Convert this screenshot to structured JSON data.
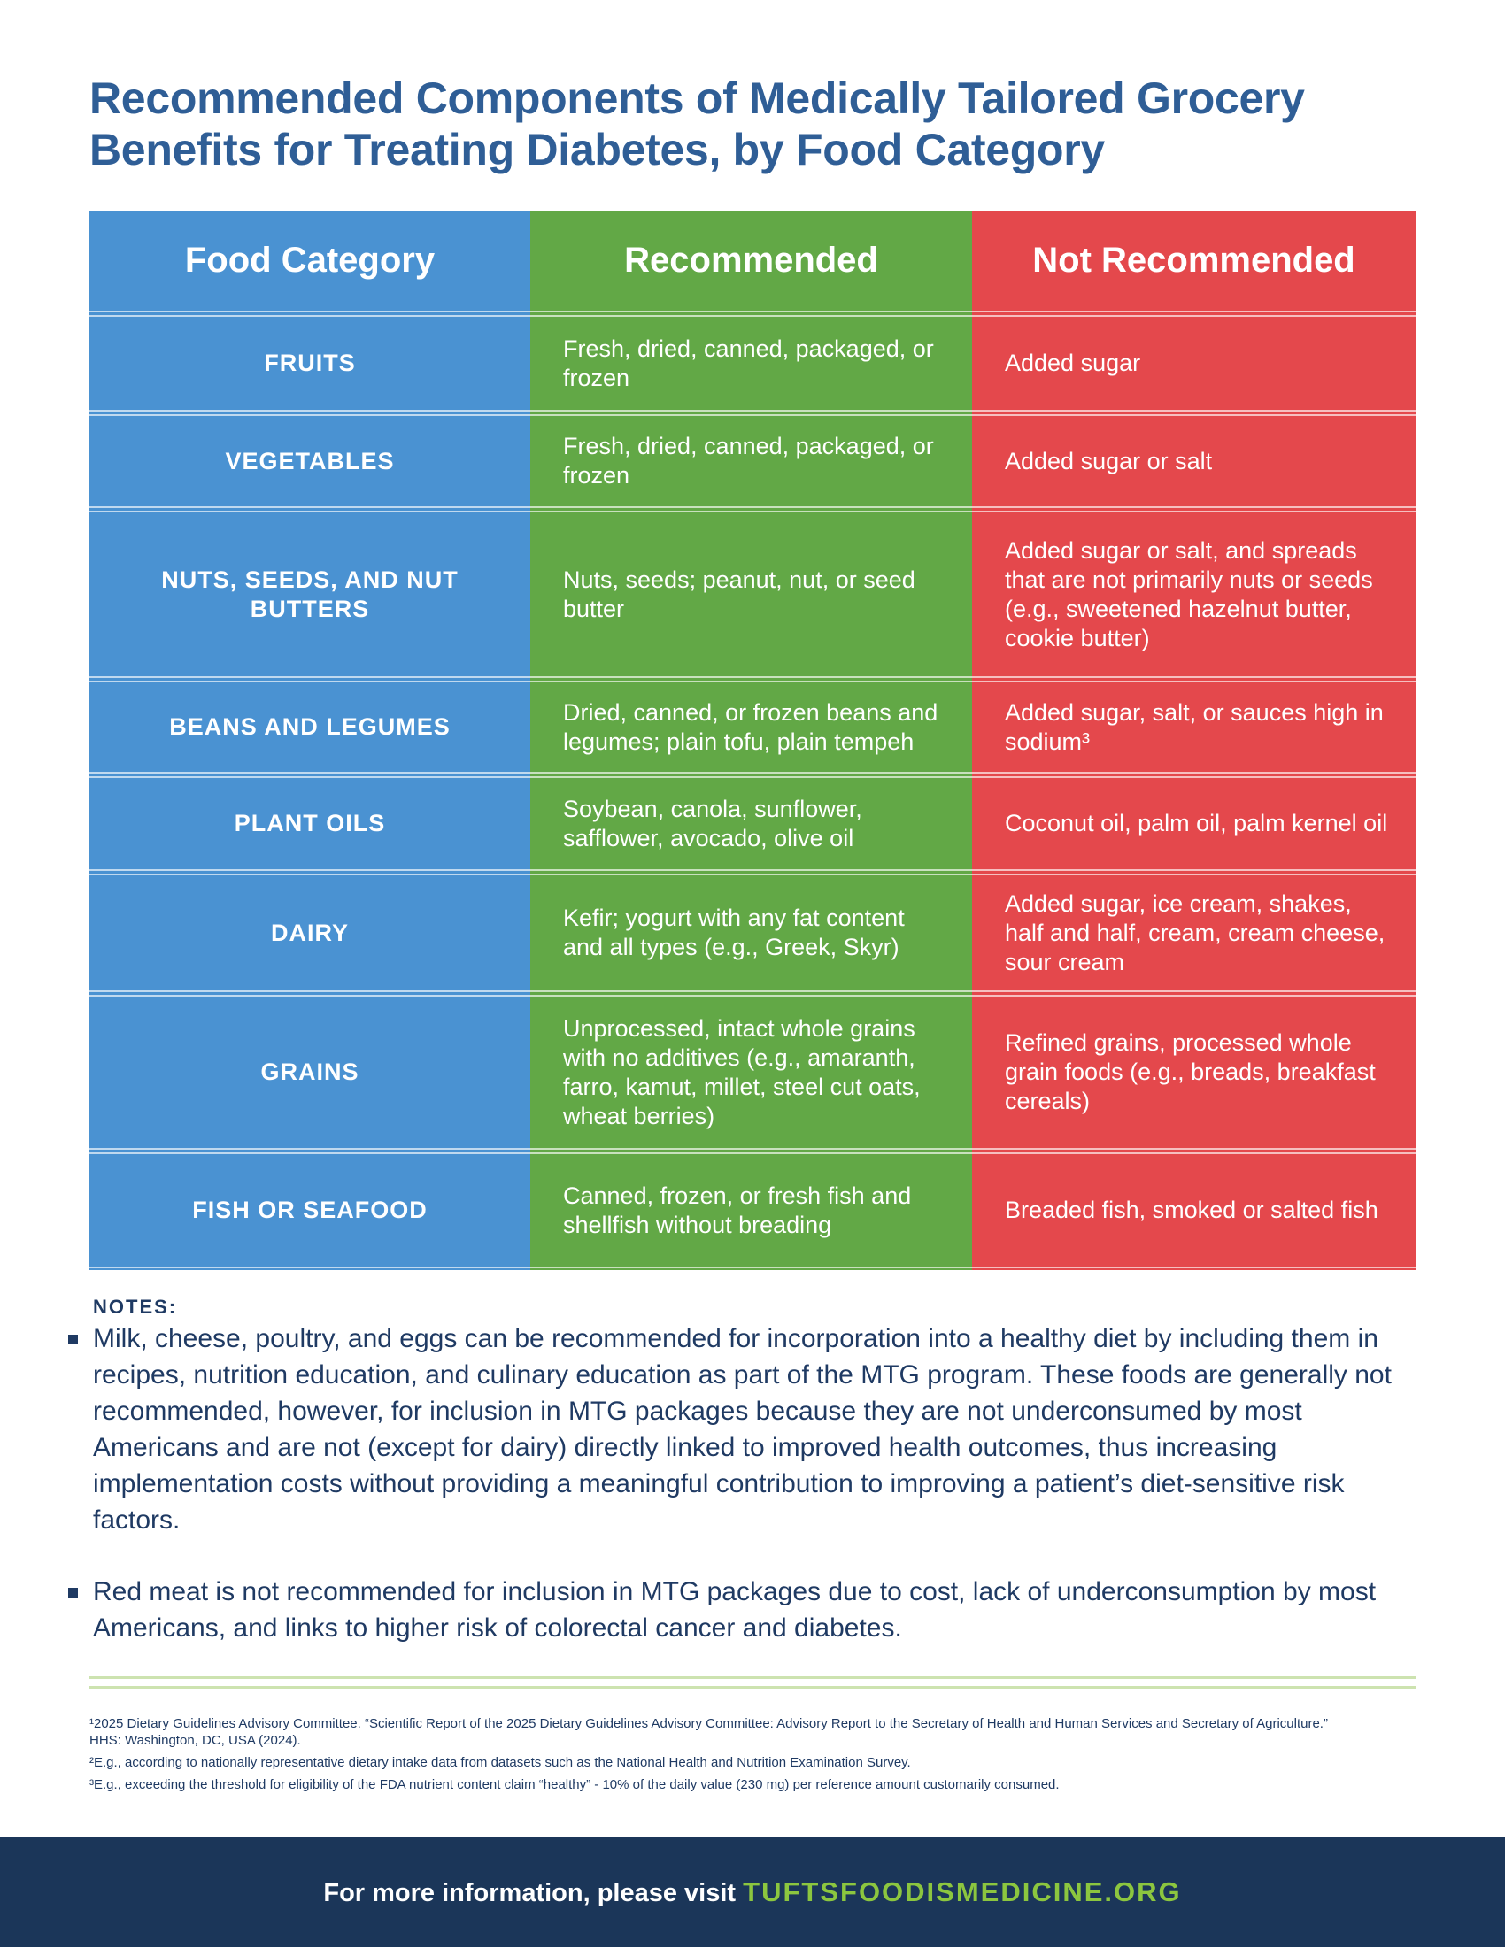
{
  "header": {
    "title_lines": [
      "Recommended Components of Medically Tailored Grocery",
      "Benefits for Treating Diabetes, by Food Category"
    ]
  },
  "table": {
    "headers": [
      "Food Category",
      "Recommended",
      "Not Recommended"
    ],
    "rows": [
      [
        "FRUITS",
        "Fresh, dried, canned, packaged, or frozen",
        "Added sugar"
      ],
      [
        "VEGETABLES",
        "Fresh, dried, canned, packaged, or frozen",
        "Added sugar or salt"
      ],
      [
        "NUTS, SEEDS, AND NUT BUTTERS",
        "Nuts, seeds; peanut, nut, or seed butter",
        "Added sugar or salt, and spreads that are not primarily nuts or seeds (e.g., sweetened hazelnut butter, cookie butter)"
      ],
      [
        "BEANS AND LEGUMES",
        "Dried, canned, or frozen beans and legumes; plain tofu, plain tempeh",
        "Added sugar, salt, or sauces high in sodium³"
      ],
      [
        "PLANT OILS",
        "Soybean, canola, sunflower, safflower, avocado, olive oil",
        "Coconut oil, palm oil, palm kernel oil"
      ],
      [
        "DAIRY",
        "Kefir; yogurt with any fat content and all types (e.g., Greek, Skyr)",
        "Added sugar, ice cream, shakes, half and half, cream, cream cheese, sour cream"
      ],
      [
        "GRAINS",
        "Unprocessed, intact whole grains with no additives (e.g., amaranth, farro, kamut, millet, steel cut oats, wheat berries)",
        "Refined grains, processed whole grain foods (e.g., breads, breakfast cereals)"
      ],
      [
        "FISH OR SEAFOOD",
        "Canned, frozen, or fresh fish and shellfish without breading",
        "Breaded fish, smoked or salted fish"
      ]
    ]
  },
  "notes": {
    "heading": "NOTES:",
    "items": [
      "Milk, cheese, poultry, and eggs can be recommended for incorporation into a healthy diet by including them in recipes, nutrition education, and culinary education as part of the MTG program. These foods are generally not recommended, however, for inclusion in MTG packages because they are not underconsumed by most Americans and are not (except for dairy) directly linked to improved health outcomes, thus increasing implementation costs without providing a meaningful contribution to improving a patient’s diet-sensitive risk factors.",
      "Red meat is not recommended for inclusion in MTG packages due to cost, lack of underconsumption by most Americans, and links to higher risk of colorectal cancer and diabetes."
    ]
  },
  "footnotes": [
    {
      "mark": "¹",
      "text": "2025 Dietary Guidelines Advisory Committee. “Scientific Report of the 2025 Dietary Guidelines Advisory Committee: Advisory Report to the Secretary of Health and Human Services and Secretary of Agriculture.” HHS: Washington, DC, USA (2024)."
    },
    {
      "mark": "²",
      "text": "E.g., according to nationally representative dietary intake data from datasets such as the National Health and Nutrition Examination Survey."
    },
    {
      "mark": "³",
      "text": "E.g., exceeding the threshold for eligibility of the FDA nutrient content claim “healthy” - 10% of the daily value (230 mg) per reference amount customarily consumed."
    }
  ],
  "footer": {
    "prefix": "For more information, please visit",
    "link": "TUFTSFOODISMEDICINE.ORG"
  }
}
